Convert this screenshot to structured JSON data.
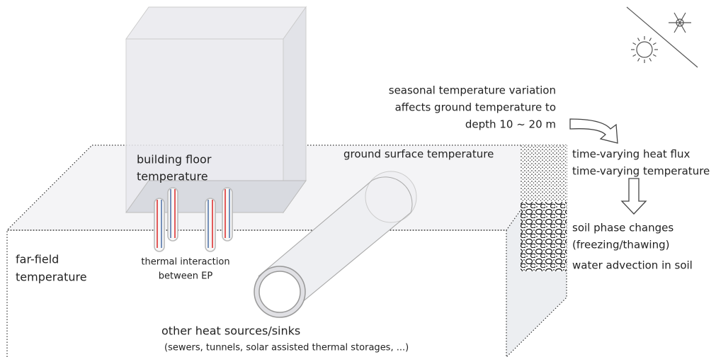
{
  "labels": {
    "seasonal": [
      "seasonal temperature variation",
      "affects ground temperature to",
      "depth 10 ~ 20 m"
    ],
    "ground_surface": [
      "ground surface temperature"
    ],
    "building_floor": [
      "building floor",
      "temperature"
    ],
    "heat_flux": [
      "time-varying heat flux",
      "time-varying temperature"
    ],
    "soil": [
      "soil phase changes",
      "(freezing/thawing)"
    ],
    "advection": [
      "water advection in soil"
    ],
    "far_field": [
      "far-field",
      "temperature"
    ],
    "thermal_interaction": [
      "thermal interaction",
      "between EP"
    ],
    "other_sources": [
      "other heat sources/sinks"
    ],
    "other_examples": [
      "(sewers, tunnels, solar assisted thermal storages, ...)"
    ]
  }
}
